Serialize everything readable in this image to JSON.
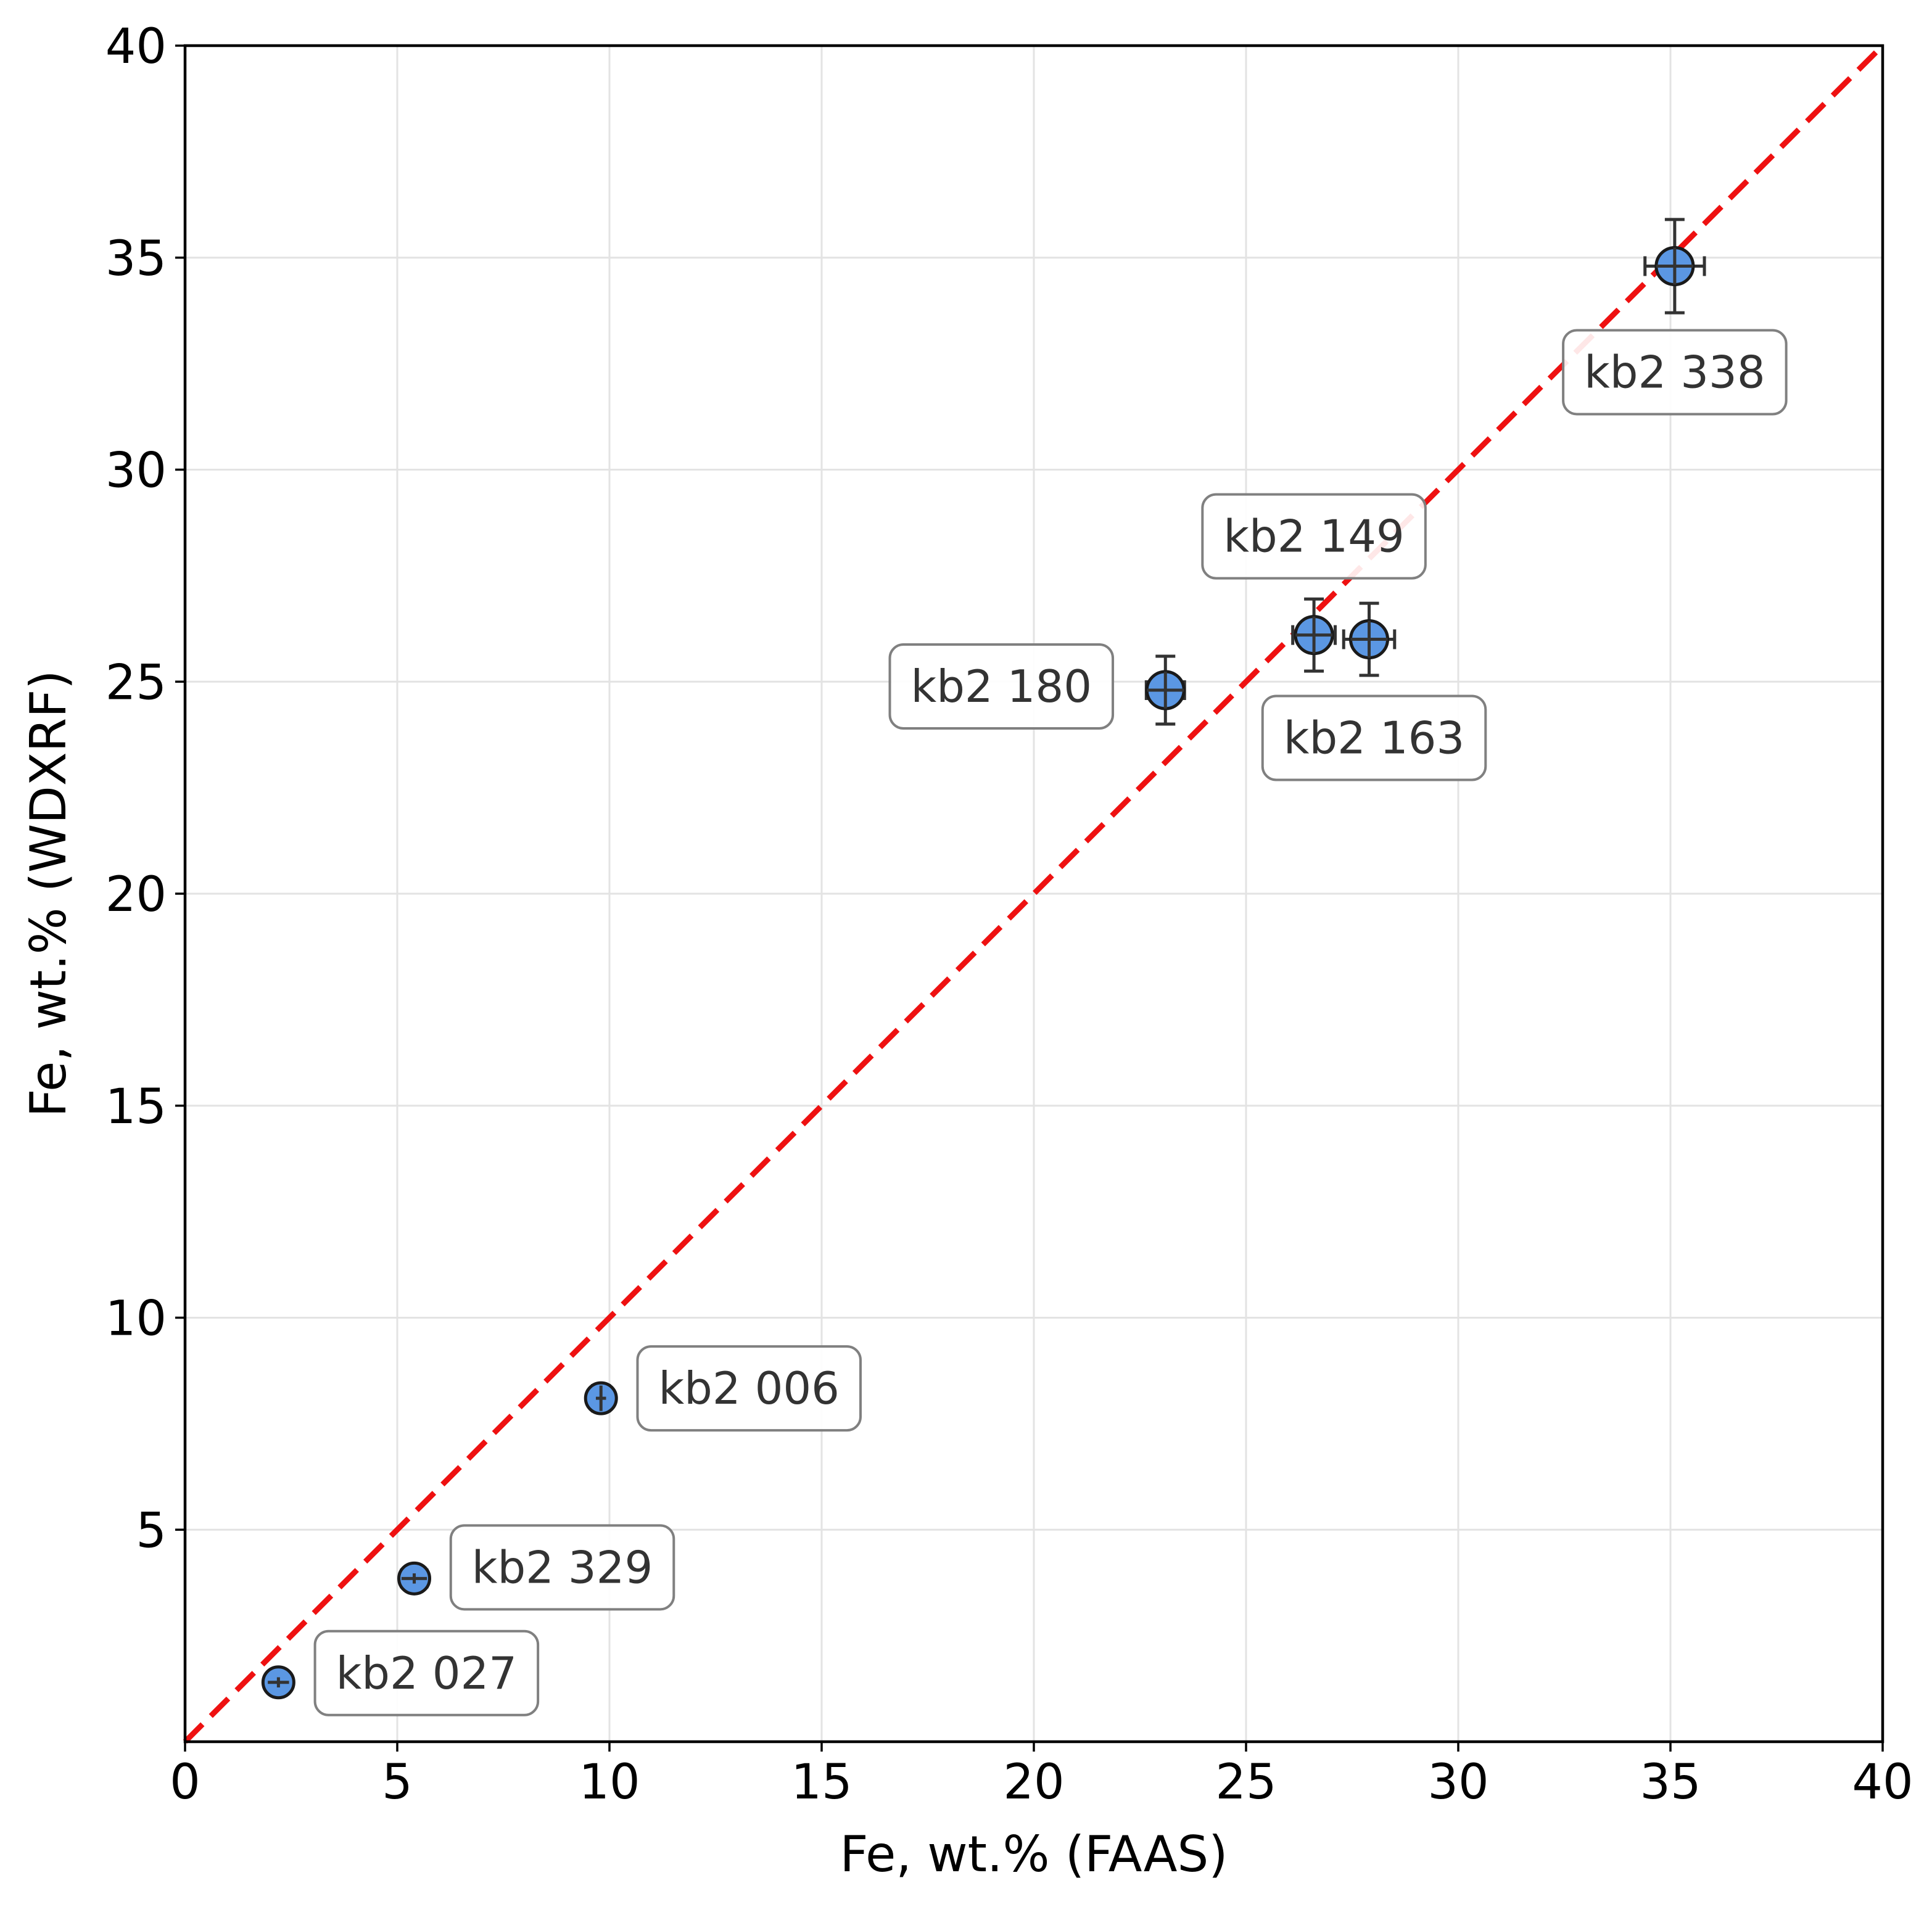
{
  "chart_data": {
    "type": "scatter",
    "title": "",
    "xlabel": "Fe, wt.% (FAAS)",
    "ylabel": "Fe, wt.% (WDXRF)",
    "xlim": [
      0,
      40
    ],
    "ylim": [
      0,
      40
    ],
    "x_ticks": [
      "0",
      "5",
      "10",
      "15",
      "20",
      "25",
      "30",
      "35",
      "40"
    ],
    "y_ticks": [
      "5",
      "10",
      "15",
      "20",
      "25",
      "30",
      "35",
      "40"
    ],
    "grid": true,
    "reference_line": {
      "style": "dashed",
      "color": "#ee1111",
      "from": [
        0,
        0
      ],
      "to": [
        40,
        40
      ]
    },
    "marker_color": "#5b97e3",
    "points": [
      {
        "label": "kb2 027",
        "x": 2.2,
        "y": 1.4,
        "xerr": 0.25,
        "yerr": 0.12
      },
      {
        "label": "kb2 329",
        "x": 5.4,
        "y": 3.85,
        "xerr": 0.3,
        "yerr": 0.12
      },
      {
        "label": "kb2 006",
        "x": 9.8,
        "y": 8.1,
        "xerr": 0.12,
        "yerr": 0.3
      },
      {
        "label": "kb2 180",
        "x": 23.1,
        "y": 24.8,
        "xerr": 0.45,
        "yerr": 0.8
      },
      {
        "label": "kb2 149",
        "x": 26.6,
        "y": 26.1,
        "xerr": 0.5,
        "yerr": 0.85
      },
      {
        "label": "kb2 163",
        "x": 27.9,
        "y": 26.0,
        "xerr": 0.6,
        "yerr": 0.85
      },
      {
        "label": "kb2 338",
        "x": 35.1,
        "y": 34.8,
        "xerr": 0.7,
        "yerr": 1.1
      }
    ]
  }
}
